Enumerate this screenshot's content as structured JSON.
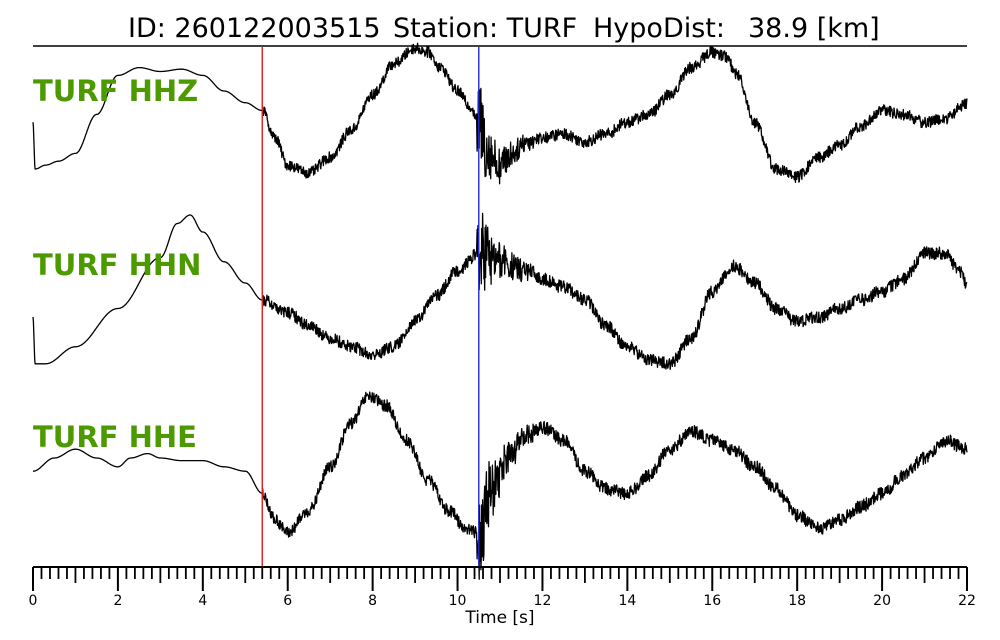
{
  "header": {
    "id_text": "ID: 260122003515",
    "station_text": "Station: TURF",
    "hypodist_text": "HypoDist:",
    "hypodist_value": "38.9 [km]"
  },
  "colors": {
    "trace": "#000000",
    "label": "#4c9a00",
    "p_pick": "#e41a1c",
    "s_pick": "#1f2bd9",
    "axis": "#000000"
  },
  "chart_data": {
    "type": "line",
    "title": "ID: 260122003515   Station: TURF   HypoDist:    38.9 [km]",
    "xlabel": "Time [s]",
    "ylabel": "",
    "xlim": [
      0,
      22
    ],
    "x_major_ticks": [
      0,
      2,
      4,
      6,
      8,
      10,
      12,
      14,
      16,
      18,
      20,
      22
    ],
    "x_minor_step": 0.2,
    "picks": [
      {
        "phase": "P",
        "time": 5.4,
        "color": "#e41a1c"
      },
      {
        "phase": "S",
        "time": 10.5,
        "color": "#1f2bd9"
      }
    ],
    "series": [
      {
        "name": "TURF HHZ",
        "noise_after": 10.6,
        "x": [
          0,
          0.05,
          0.3,
          0.6,
          1.0,
          1.5,
          2.0,
          2.5,
          3.0,
          3.5,
          4.0,
          4.5,
          5.0,
          5.4,
          5.7,
          6.0,
          6.5,
          7.0,
          7.5,
          8.0,
          8.5,
          9.0,
          9.3,
          9.6,
          10.0,
          10.3,
          10.5,
          10.7,
          11.0,
          11.3,
          11.6,
          12.0,
          12.5,
          13.0,
          13.5,
          14.0,
          14.5,
          15.0,
          15.5,
          16.0,
          16.3,
          16.6,
          17.0,
          17.5,
          18.0,
          18.5,
          19.0,
          19.5,
          20.0,
          20.5,
          21.0,
          21.5,
          22.0
        ],
        "y": [
          0.1,
          -0.5,
          -0.45,
          -0.4,
          -0.3,
          0.2,
          0.7,
          0.8,
          0.75,
          0.78,
          0.7,
          0.5,
          0.35,
          0.25,
          -0.1,
          -0.45,
          -0.55,
          -0.35,
          0.0,
          0.45,
          0.85,
          1.05,
          1.0,
          0.8,
          0.5,
          0.3,
          0.1,
          -0.25,
          -0.45,
          -0.3,
          -0.15,
          -0.1,
          -0.05,
          -0.15,
          -0.05,
          0.1,
          0.2,
          0.45,
          0.8,
          1.0,
          0.95,
          0.7,
          0.1,
          -0.5,
          -0.6,
          -0.35,
          -0.2,
          0.05,
          0.25,
          0.2,
          0.1,
          0.15,
          0.35
        ]
      },
      {
        "name": "TURF HHN",
        "noise_after": 10.5,
        "x": [
          0,
          0.05,
          0.3,
          1.0,
          2.0,
          3.0,
          3.4,
          3.7,
          4.0,
          4.5,
          5.0,
          5.4,
          6.0,
          6.5,
          7.0,
          7.5,
          8.0,
          8.5,
          9.0,
          9.5,
          10.0,
          10.5,
          11.0,
          11.5,
          12.0,
          12.5,
          13.0,
          13.5,
          14.0,
          14.5,
          15.0,
          15.5,
          16.0,
          16.5,
          17.0,
          17.5,
          18.0,
          18.5,
          19.0,
          19.5,
          20.0,
          20.5,
          21.0,
          21.5,
          21.8,
          22.0
        ],
        "y": [
          -0.2,
          -0.75,
          -0.75,
          -0.55,
          -0.1,
          0.5,
          0.9,
          1.0,
          0.8,
          0.45,
          0.2,
          0.0,
          -0.15,
          -0.3,
          -0.45,
          -0.55,
          -0.65,
          -0.55,
          -0.25,
          0.05,
          0.35,
          0.55,
          0.45,
          0.35,
          0.25,
          0.15,
          0.0,
          -0.3,
          -0.55,
          -0.7,
          -0.75,
          -0.45,
          0.1,
          0.4,
          0.2,
          -0.1,
          -0.25,
          -0.2,
          -0.1,
          0.0,
          0.1,
          0.25,
          0.55,
          0.55,
          0.35,
          0.2
        ]
      },
      {
        "name": "TURF HHE",
        "noise_after": 10.4,
        "x": [
          0,
          0.5,
          1.0,
          1.5,
          2.0,
          2.3,
          2.7,
          3.0,
          3.5,
          4.0,
          4.5,
          5.0,
          5.4,
          5.7,
          6.0,
          6.5,
          7.0,
          7.5,
          7.9,
          8.3,
          8.8,
          9.3,
          9.8,
          10.2,
          10.5,
          10.8,
          11.2,
          11.6,
          12.0,
          12.5,
          13.0,
          13.5,
          14.0,
          14.5,
          15.0,
          15.5,
          16.0,
          16.5,
          17.0,
          17.5,
          18.0,
          18.5,
          19.0,
          19.5,
          20.0,
          20.5,
          21.0,
          21.5,
          22.0
        ],
        "y": [
          0.1,
          0.25,
          0.35,
          0.25,
          0.15,
          0.25,
          0.3,
          0.25,
          0.22,
          0.22,
          0.15,
          0.1,
          -0.15,
          -0.45,
          -0.6,
          -0.35,
          0.15,
          0.65,
          0.95,
          0.85,
          0.45,
          0.0,
          -0.35,
          -0.55,
          -0.6,
          -0.1,
          0.25,
          0.5,
          0.6,
          0.45,
          0.1,
          -0.1,
          -0.15,
          0.05,
          0.35,
          0.55,
          0.45,
          0.35,
          0.15,
          -0.1,
          -0.4,
          -0.55,
          -0.45,
          -0.3,
          -0.15,
          0.05,
          0.25,
          0.45,
          0.35
        ]
      }
    ]
  }
}
